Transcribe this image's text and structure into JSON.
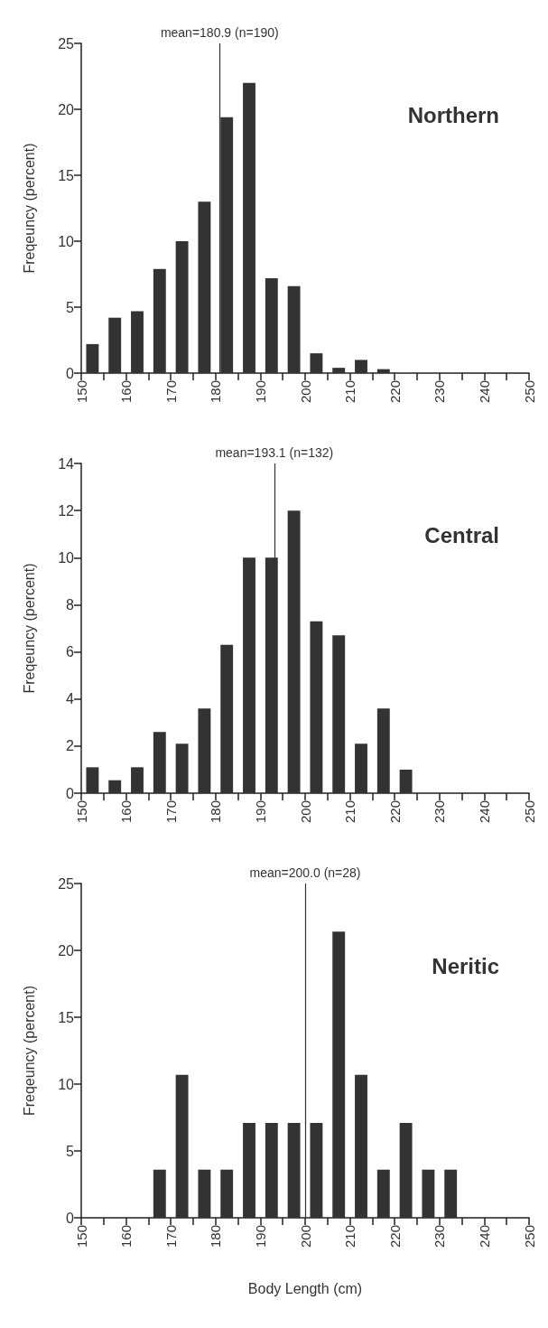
{
  "chart_data": [
    {
      "type": "histogram",
      "title": "Northern",
      "ylabel": "Freqeuncy (percent)",
      "color": "#333333",
      "bins": [
        150,
        155,
        160,
        165,
        170,
        175,
        180,
        185,
        190,
        195,
        200,
        205,
        210,
        215,
        220
      ],
      "values": [
        2.2,
        4.2,
        4.7,
        7.9,
        10,
        13,
        19.4,
        22,
        7.2,
        6.6,
        1.5,
        0.4,
        1.0,
        0.3
      ],
      "xlim": [
        150,
        250
      ],
      "xticks": [
        150,
        {
          "value": 155,
          "label": null
        },
        160,
        {
          "value": 165,
          "label": null
        },
        170,
        {
          "value": 175,
          "label": null
        },
        180,
        {
          "value": 185,
          "label": null
        },
        190,
        {
          "value": 195,
          "label": null
        },
        200,
        {
          "value": 205,
          "label": null
        },
        210,
        {
          "value": 215,
          "label": null
        },
        220,
        {
          "value": 225,
          "label": null
        },
        230,
        {
          "value": 235,
          "label": null
        },
        240,
        {
          "value": 245,
          "label": null
        },
        250
      ],
      "ylim": [
        0,
        25
      ],
      "yticks": [
        0,
        5,
        10,
        15,
        20,
        25
      ],
      "ref_lines": [
        {
          "axis": "x",
          "value": 180.9,
          "label": "mean=180.9 (n=190)",
          "color": "#333333"
        }
      ]
    },
    {
      "type": "histogram",
      "title": "Central",
      "ylabel": "Freqeuncy (percent)",
      "color": "#333333",
      "bins": [
        150,
        155,
        160,
        165,
        170,
        175,
        180,
        185,
        190,
        195,
        200,
        205,
        210,
        215,
        220,
        225
      ],
      "values": [
        1.1,
        0.55,
        1.1,
        2.6,
        2.1,
        3.6,
        6.3,
        10,
        10,
        12,
        7.3,
        6.7,
        2.1,
        3.6,
        1.0
      ],
      "xlim": [
        150,
        250
      ],
      "xticks": [
        150,
        {
          "value": 155,
          "label": null
        },
        160,
        {
          "value": 165,
          "label": null
        },
        170,
        {
          "value": 175,
          "label": null
        },
        180,
        {
          "value": 185,
          "label": null
        },
        190,
        {
          "value": 195,
          "label": null
        },
        200,
        {
          "value": 205,
          "label": null
        },
        210,
        {
          "value": 215,
          "label": null
        },
        220,
        {
          "value": 225,
          "label": null
        },
        230,
        {
          "value": 235,
          "label": null
        },
        240,
        {
          "value": 245,
          "label": null
        },
        250
      ],
      "ylim": [
        0,
        14
      ],
      "yticks": [
        0,
        2,
        4,
        6,
        8,
        10,
        12,
        14
      ],
      "ref_lines": [
        {
          "axis": "x",
          "value": 193.1,
          "label": "mean=193.1 (n=132)",
          "color": "#333333"
        }
      ]
    },
    {
      "type": "histogram",
      "title": "Neritic",
      "xlabel": "Body Length (cm)",
      "ylabel": "Freqeuncy (percent)",
      "color": "#333333",
      "bins": [
        165,
        170,
        175,
        180,
        185,
        190,
        195,
        200,
        205,
        210,
        215,
        220,
        225,
        230,
        235
      ],
      "values": [
        3.6,
        10.7,
        3.6,
        3.6,
        7.1,
        7.1,
        7.1,
        7.1,
        21.4,
        10.7,
        3.6,
        7.1,
        3.6,
        3.6
      ],
      "xlim": [
        150,
        250
      ],
      "xticks": [
        150,
        {
          "value": 155,
          "label": null
        },
        160,
        {
          "value": 165,
          "label": null
        },
        170,
        {
          "value": 175,
          "label": null
        },
        180,
        {
          "value": 185,
          "label": null
        },
        190,
        {
          "value": 195,
          "label": null
        },
        200,
        {
          "value": 205,
          "label": null
        },
        210,
        {
          "value": 215,
          "label": null
        },
        220,
        {
          "value": 225,
          "label": null
        },
        230,
        {
          "value": 235,
          "label": null
        },
        240,
        {
          "value": 245,
          "label": null
        },
        250
      ],
      "ylim": [
        0,
        25
      ],
      "yticks": [
        0,
        5,
        10,
        15,
        20,
        25
      ],
      "ref_lines": [
        {
          "axis": "x",
          "value": 200.0,
          "label": "mean=200.0 (n=28)",
          "color": "#333333"
        }
      ]
    }
  ]
}
